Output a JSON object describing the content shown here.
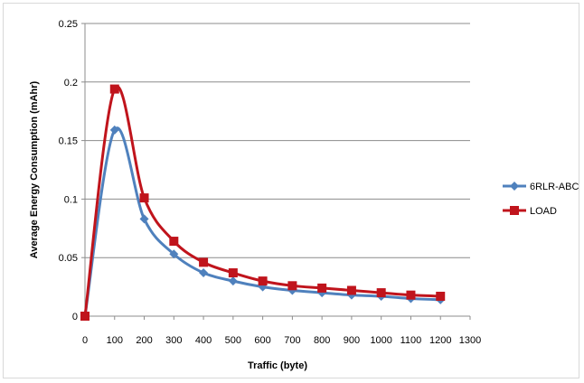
{
  "chart_data": {
    "type": "line",
    "title": "",
    "xlabel": "Traffic (byte)",
    "ylabel": "Average Energy Consumption (mAhr)",
    "xlim": [
      0,
      1300
    ],
    "ylim": [
      0,
      0.25
    ],
    "x_ticks": [
      0,
      100,
      200,
      300,
      400,
      500,
      600,
      700,
      800,
      900,
      1000,
      1100,
      1200,
      1300
    ],
    "y_ticks": [
      0,
      0.05,
      0.1,
      0.15,
      0.2,
      0.25
    ],
    "x_tick_labels": [
      "0",
      "100",
      "200",
      "300",
      "400",
      "500",
      "600",
      "700",
      "800",
      "900",
      "1000",
      "1100",
      "1200",
      "1300"
    ],
    "y_tick_labels": [
      "0",
      "0.05",
      "0.1",
      "0.15",
      "0.2",
      "0.25"
    ],
    "grid": "horizontal",
    "legend_position": "right",
    "smooth": true,
    "x": [
      0,
      100,
      200,
      300,
      400,
      500,
      600,
      700,
      800,
      900,
      1000,
      1100,
      1200
    ],
    "series": [
      {
        "name": "6RLR-ABC",
        "marker": "diamond",
        "color": "#4f81bd",
        "values": [
          0,
          0.159,
          0.083,
          0.053,
          0.037,
          0.03,
          0.025,
          0.022,
          0.02,
          0.018,
          0.017,
          0.015,
          0.014
        ]
      },
      {
        "name": "LOAD",
        "marker": "square",
        "color": "#c0141c",
        "values": [
          0,
          0.194,
          0.101,
          0.064,
          0.046,
          0.037,
          0.03,
          0.026,
          0.024,
          0.022,
          0.02,
          0.018,
          0.017
        ]
      }
    ]
  }
}
